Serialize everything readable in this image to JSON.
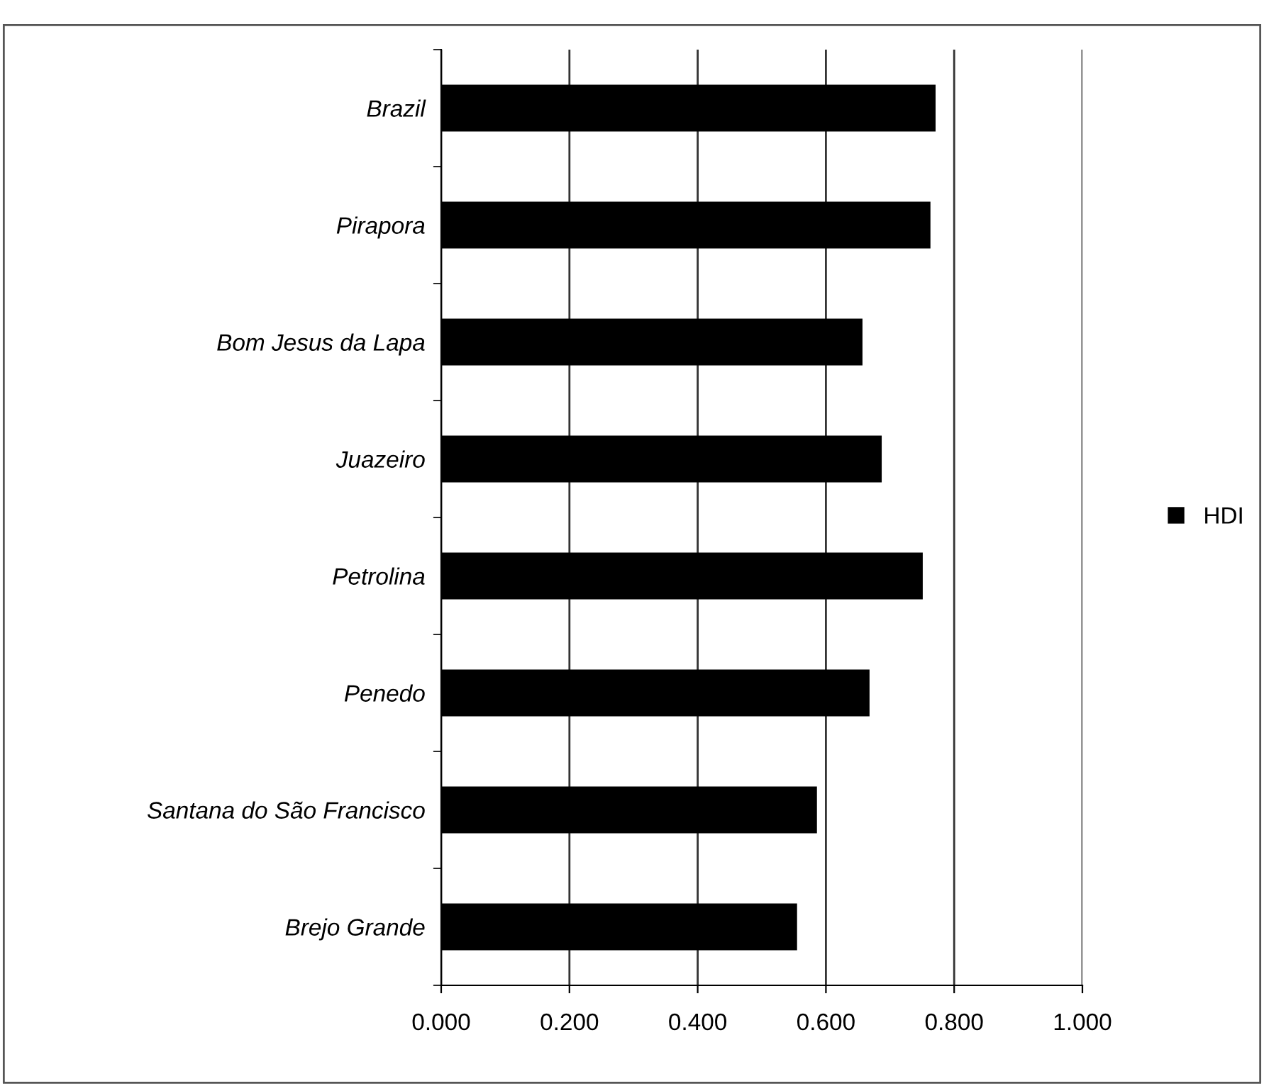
{
  "chart_data": {
    "type": "bar",
    "orientation": "horizontal",
    "categories": [
      "Brazil",
      "Pirapora",
      "Bom Jesus da Lapa",
      "Juazeiro",
      "Petrolina",
      "Penedo",
      "Santana do São Francisco",
      "Brejo Grande"
    ],
    "series": [
      {
        "name": "HDI",
        "color": "#000000",
        "values": [
          0.771,
          0.763,
          0.657,
          0.687,
          0.751,
          0.668,
          0.586,
          0.555
        ]
      }
    ],
    "xlim": [
      0,
      1
    ],
    "xticks": [
      {
        "value": 0,
        "label": "0.000"
      },
      {
        "value": 0.2,
        "label": "0.200"
      },
      {
        "value": 0.4,
        "label": "0.400"
      },
      {
        "value": 0.6,
        "label": "0.600"
      },
      {
        "value": 0.8,
        "label": "0.800"
      },
      {
        "value": 1,
        "label": "1.000"
      }
    ],
    "grid": "x",
    "legend": "right"
  }
}
